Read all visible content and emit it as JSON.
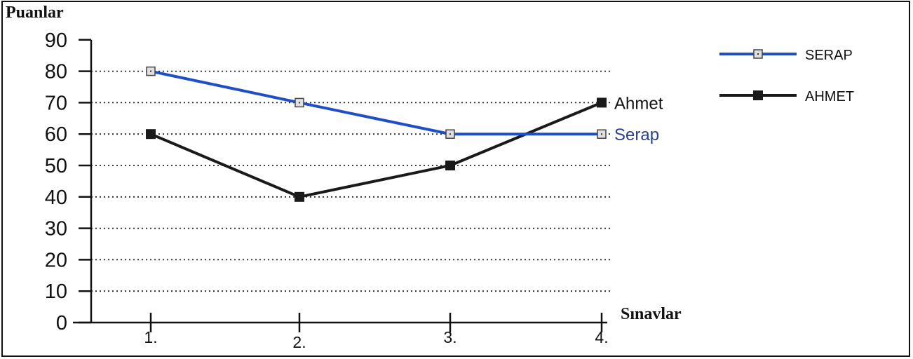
{
  "chart_data": {
    "type": "line",
    "ylabel": "Puanlar",
    "xlabel": "Sınavlar",
    "ylim": [
      0,
      90
    ],
    "yticks": [
      0,
      10,
      20,
      30,
      40,
      50,
      60,
      70,
      80,
      90
    ],
    "categories": [
      "1.",
      "2.",
      "3.",
      "4."
    ],
    "series": [
      {
        "name": "SERAP",
        "end_label": "Serap",
        "color": "#1f4fc8",
        "marker": "hollow-square",
        "values": [
          80,
          70,
          60,
          60
        ]
      },
      {
        "name": "AHMET",
        "end_label": "Ahmet",
        "color": "#1a1a1a",
        "marker": "filled-square",
        "values": [
          60,
          40,
          50,
          70
        ]
      }
    ],
    "grid": "dotted-horizontal",
    "legend": "top-right"
  },
  "colors": {
    "serap_label": "#2b3f8f",
    "axis": "#111111"
  }
}
